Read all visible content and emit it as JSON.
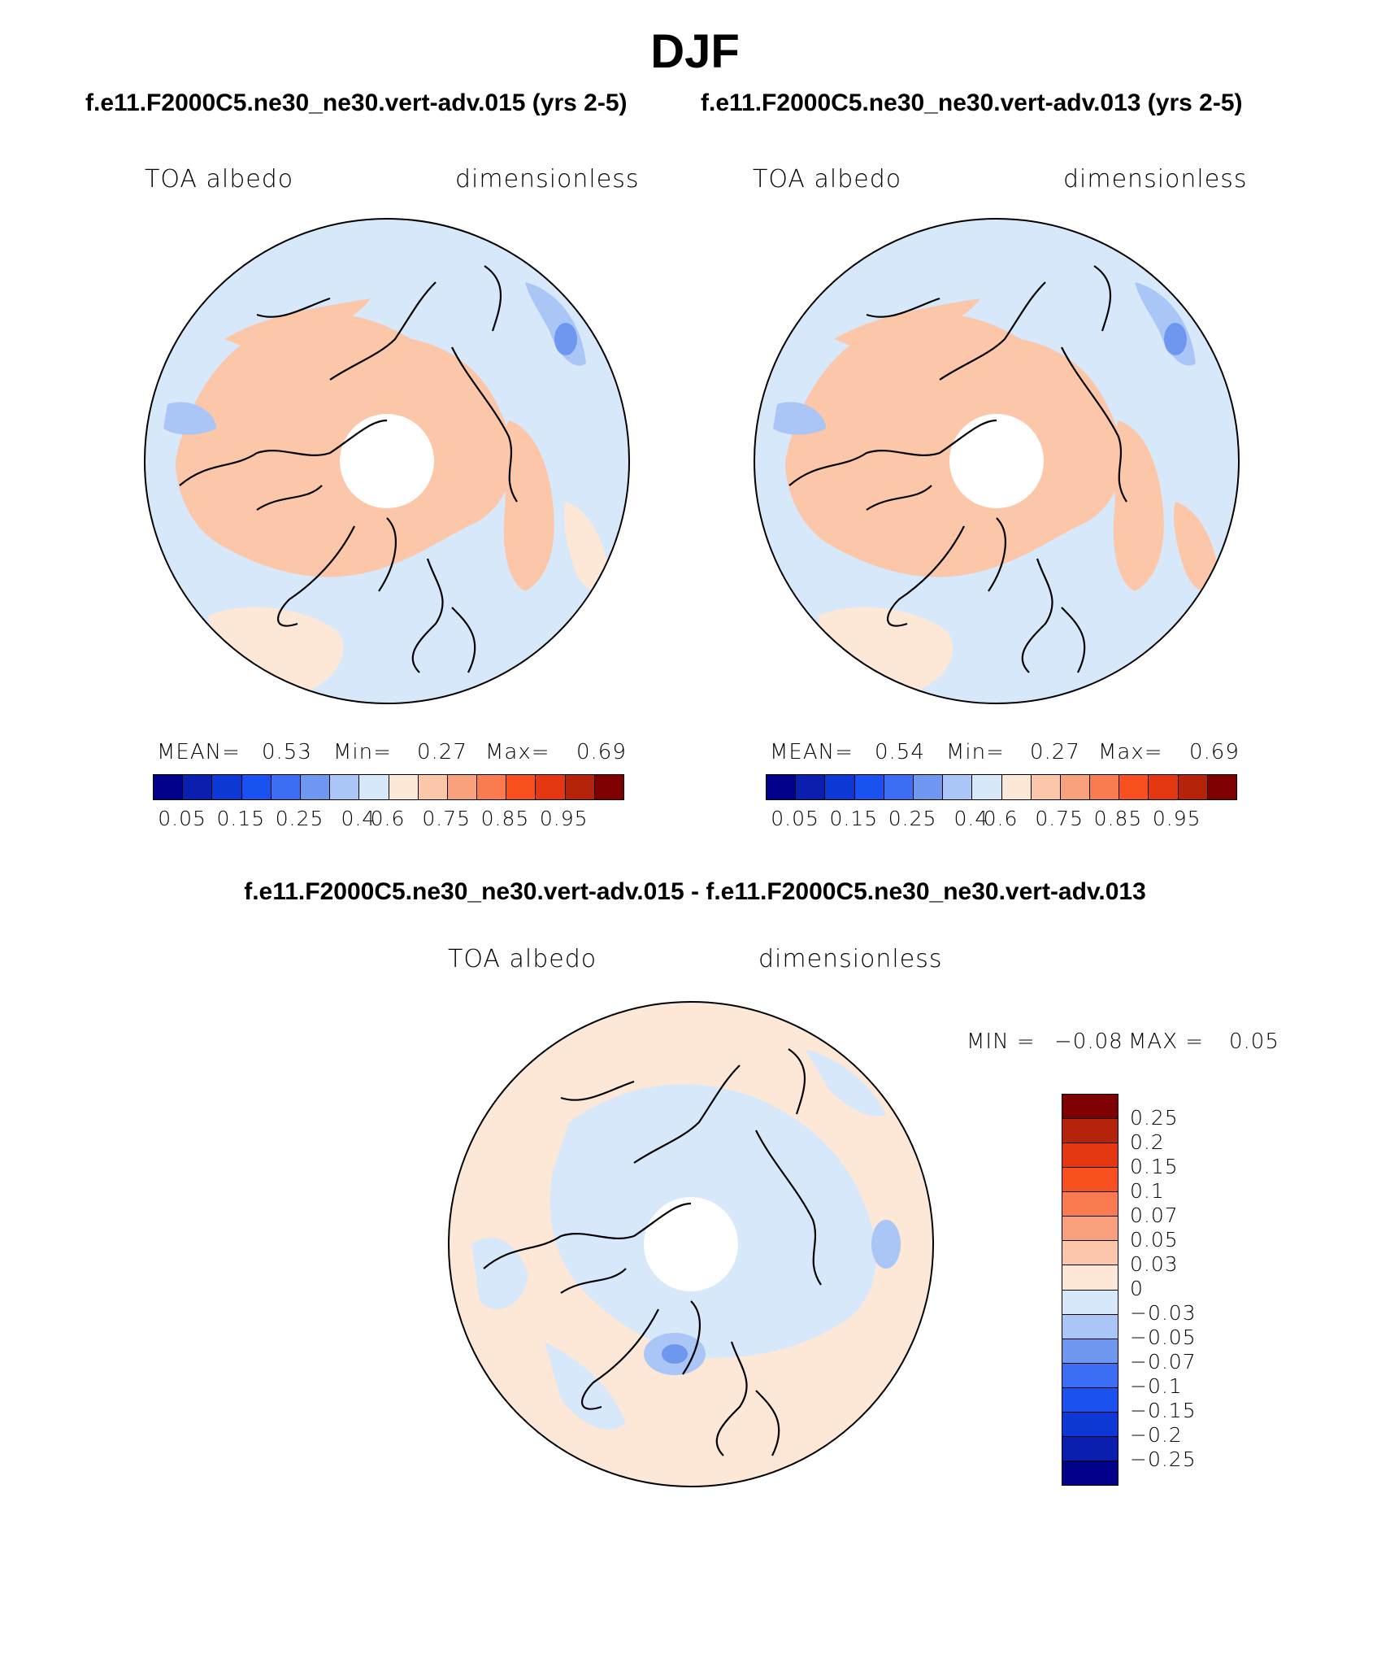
{
  "figure": {
    "title": "DJF",
    "left_case_title": "f.e11.F2000C5.ne30_ne30.vert-adv.015 (yrs 2-5)",
    "right_case_title": "f.e11.F2000C5.ne30_ne30.vert-adv.013 (yrs 2-5)",
    "diff_title": "f.e11.F2000C5.ne30_ne30.vert-adv.015 - f.e11.F2000C5.ne30_ne30.vert-adv.013"
  },
  "panels": {
    "left": {
      "variable": "TOA albedo",
      "units": "dimensionless",
      "mean_label": "MEAN=",
      "mean_value": "0.53",
      "min_label": "Min=",
      "min_value": "0.27",
      "max_label": "Max=",
      "max_value": "0.69"
    },
    "right": {
      "variable": "TOA albedo",
      "units": "dimensionless",
      "mean_label": "MEAN=",
      "mean_value": "0.54",
      "min_label": "Min=",
      "min_value": "0.27",
      "max_label": "Max=",
      "max_value": "0.69"
    },
    "diff": {
      "variable": "TOA albedo",
      "units": "dimensionless",
      "min_label": "MIN =",
      "min_value": "−0.08",
      "max_label": "MAX =",
      "max_value": "0.05"
    }
  },
  "colorbars": {
    "field_colors": [
      "#00008b",
      "#0a1fb0",
      "#0c38d6",
      "#1a52f0",
      "#3c6ef5",
      "#6e97f0",
      "#a9c6f7",
      "#d8e8fb",
      "#fde7d6",
      "#fcc6a8",
      "#f9a07d",
      "#f97a4e",
      "#f9501f",
      "#e53812",
      "#b5230b",
      "#7e0000"
    ],
    "field_ticks": [
      "0.05",
      "0.15",
      "0.25",
      "0.4",
      "0.6",
      "0.75",
      "0.85",
      "0.95"
    ],
    "diff_colors_top_to_bottom": [
      "#7e0000",
      "#b5230b",
      "#e53812",
      "#f9501f",
      "#f97a4e",
      "#f9a07d",
      "#fcc6a8",
      "#fde7d6",
      "#d8e8fb",
      "#a9c6f7",
      "#6e97f0",
      "#3c6ef5",
      "#1a52f0",
      "#0c38d6",
      "#0a1fb0",
      "#00008b"
    ],
    "diff_ticks": [
      "0.25",
      "0.2",
      "0.15",
      "0.1",
      "0.07",
      "0.05",
      "0.03",
      "0",
      "−0.03",
      "−0.05",
      "−0.07",
      "−0.1",
      "−0.15",
      "−0.2",
      "−0.25"
    ]
  },
  "map_colors": {
    "base_blue": "#d8e8fb",
    "mid_blue": "#a9c6f7",
    "deep_blue": "#6e97f0",
    "base_orange": "#fde7d6",
    "mid_orange": "#fcc6a8",
    "coast": "#000000"
  }
}
